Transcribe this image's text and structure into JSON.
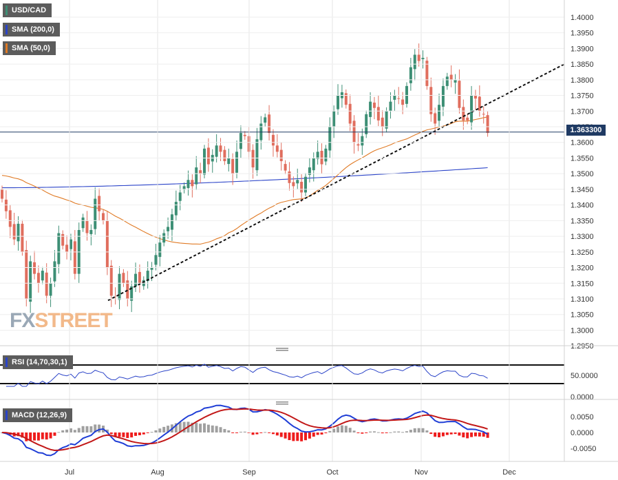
{
  "legend": {
    "symbol": "USD/CAD",
    "sma200": "SMA (200,0)",
    "sma50": "SMA (50,0)",
    "rsi": "RSI (14,70,30,1)",
    "macd": "MACD (12,26,9)"
  },
  "logo": {
    "part1": "FX",
    "part2": "STREET"
  },
  "current_price": "1.363300",
  "colors": {
    "up": "#3d8f75",
    "down": "#e06e5e",
    "sma200": "#2a43c8",
    "sma50": "#e07a24",
    "price_line": "#1f3a63",
    "macd": "#1f3ed6",
    "signal": "#c21818",
    "hist_pos": "#a0a0a0",
    "hist_neg": "#ee1c1c",
    "rsi": "#2a43c8"
  },
  "chart_data": [
    {
      "type": "candlestick",
      "symbol": "USD/CAD",
      "x_labels": [
        "Jul",
        "Aug",
        "Sep",
        "Oct",
        "Nov",
        "Dec"
      ],
      "y_ticks": [
        "1.4000",
        "1.3950",
        "1.3900",
        "1.3850",
        "1.3800",
        "1.3750",
        "1.3700",
        "1.3650",
        "1.3600",
        "1.3550",
        "1.3500",
        "1.3450",
        "1.3400",
        "1.3350",
        "1.3300",
        "1.3250",
        "1.3200",
        "1.3150",
        "1.3100",
        "1.3050",
        "1.3000",
        "1.2950"
      ],
      "ylim": [
        1.2935,
        1.4035
      ],
      "closes": [
        1.342,
        1.338,
        1.333,
        1.329,
        1.334,
        1.325,
        1.31,
        1.322,
        1.318,
        1.315,
        1.319,
        1.311,
        1.315,
        1.322,
        1.331,
        1.327,
        1.325,
        1.329,
        1.318,
        1.332,
        1.336,
        1.331,
        1.332,
        1.342,
        1.338,
        1.335,
        1.32,
        1.311,
        1.31,
        1.318,
        1.315,
        1.31,
        1.314,
        1.318,
        1.315,
        1.316,
        1.319,
        1.32,
        1.324,
        1.328,
        1.331,
        1.333,
        1.337,
        1.341,
        1.344,
        1.346,
        1.348,
        1.346,
        1.352,
        1.35,
        1.358,
        1.353,
        1.356,
        1.359,
        1.357,
        1.354,
        1.355,
        1.35,
        1.357,
        1.363,
        1.362,
        1.357,
        1.352,
        1.361,
        1.366,
        1.368,
        1.363,
        1.359,
        1.357,
        1.354,
        1.351,
        1.347,
        1.346,
        1.348,
        1.344,
        1.349,
        1.352,
        1.355,
        1.357,
        1.353,
        1.358,
        1.365,
        1.37,
        1.375,
        1.376,
        1.372,
        1.366,
        1.36,
        1.359,
        1.362,
        1.369,
        1.373,
        1.371,
        1.367,
        1.365,
        1.37,
        1.373,
        1.375,
        1.374,
        1.372,
        1.378,
        1.384,
        1.388,
        1.386,
        1.387,
        1.378,
        1.369,
        1.366,
        1.372,
        1.378,
        1.381,
        1.38,
        1.38,
        1.371,
        1.367,
        1.367,
        1.375,
        1.374,
        1.37,
        1.369,
        1.363
      ],
      "opens_and_ranges": "daily OHLC candles, approx Jun 24 to Nov 26",
      "extremes": {
        "low": 1.31,
        "high": 1.39
      },
      "sma200_range": [
        1.3455,
        1.352
      ],
      "sma50_range": [
        1.327,
        1.3685
      ],
      "trendline": {
        "from": [
          1.3095
        ],
        "to": [
          1.385
        ]
      },
      "last_price": 1.3633
    },
    {
      "type": "line",
      "name": "RSI (14,70,30,1)",
      "y_ticks": [
        "50.0000",
        "0.0000"
      ],
      "levels": [
        70,
        30
      ]
    },
    {
      "type": "bar",
      "name": "MACD (12,26,9)",
      "y_ticks": [
        "0.0050",
        "0.0000",
        "-0.0050"
      ]
    }
  ]
}
